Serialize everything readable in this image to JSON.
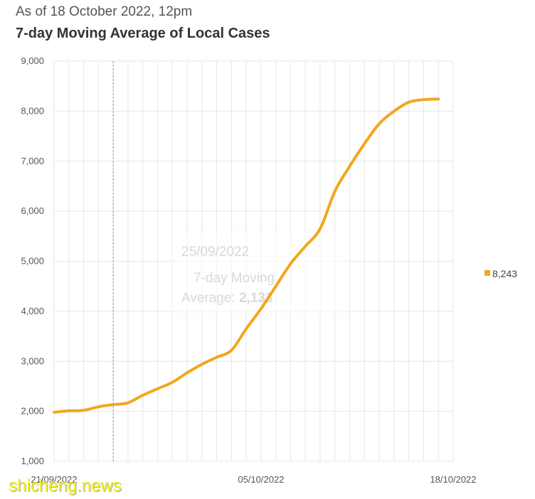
{
  "header": {
    "subtitle": "As of 18 October 2022, 12pm",
    "title": "7-day Moving Average of Local Cases"
  },
  "colors": {
    "series": "#F0A81C",
    "grid": "#e6e6e6",
    "axis_text": "#555555",
    "crosshair": "#999999"
  },
  "watermark": "shicheng.news",
  "chart_data": {
    "type": "line",
    "title": "7-day Moving Average of Local Cases",
    "xlabel": "",
    "ylabel": "",
    "x_start": "21/09/2022",
    "x_end": "18/10/2022",
    "x_tick_labels": [
      "21/09/2022",
      "05/10/2022",
      "18/10/2022"
    ],
    "ylim": [
      1000,
      9000
    ],
    "y_ticks": [
      1000,
      2000,
      3000,
      4000,
      5000,
      6000,
      7000,
      8000,
      9000
    ],
    "y_tick_labels": [
      "1,000",
      "2,000",
      "3,000",
      "4,000",
      "5,000",
      "6,000",
      "7,000",
      "8,000",
      "9,000"
    ],
    "grid": true,
    "legend": "right",
    "series": [
      {
        "values": [
          1980,
          2010,
          2020,
          2090,
          2133,
          2170,
          2320,
          2450,
          2580,
          2770,
          2940,
          3080,
          3220,
          3650,
          4050,
          4500,
          4950,
          5300,
          5650,
          6400,
          6900,
          7350,
          7750,
          8000,
          8180,
          8230,
          8243
        ],
        "color": "#F0A81C"
      }
    ],
    "legend_value": "8,243",
    "tooltip": {
      "date": "25/09/2022",
      "label_line1": "7-day Moving",
      "label_line2": "Average: ",
      "value": "2,133"
    },
    "crosshair_date": "25/09/2022"
  }
}
